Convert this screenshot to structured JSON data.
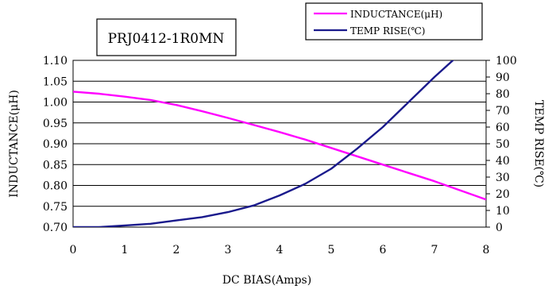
{
  "chart_data": {
    "type": "line",
    "title": "PRJ0412-1R0MN",
    "xlabel": "DC BIAS(Amps)",
    "ylabel_left": "INDUCTANCE(μH)",
    "ylabel_right": "TEMP RISE(℃)",
    "xlim": [
      0,
      8
    ],
    "ylim_left": [
      0.7,
      1.1
    ],
    "ylim_right": [
      0,
      100
    ],
    "x_ticks": [
      "0",
      "1",
      "2",
      "3",
      "4",
      "5",
      "6",
      "7",
      "8"
    ],
    "y_left_ticks": [
      "0.70",
      "0.75",
      "0.80",
      "0.85",
      "0.90",
      "0.95",
      "1.00",
      "1.05",
      "1.10"
    ],
    "y_right_ticks": [
      "0",
      "10",
      "20",
      "30",
      "40",
      "50",
      "60",
      "70",
      "80",
      "90",
      "100"
    ],
    "grid": true,
    "legend_position": "top-right",
    "series": [
      {
        "name": "INDUCTANCE(μH)",
        "axis": "left",
        "color": "#ff00ff",
        "x": [
          0,
          0.5,
          1,
          1.5,
          2,
          2.5,
          3,
          3.5,
          4,
          4.5,
          5,
          5.5,
          6,
          6.5,
          7,
          7.5,
          8
        ],
        "y": [
          1.025,
          1.02,
          1.013,
          1.005,
          0.993,
          0.978,
          0.962,
          0.945,
          0.928,
          0.91,
          0.89,
          0.87,
          0.85,
          0.83,
          0.81,
          0.788,
          0.766
        ]
      },
      {
        "name": "TEMP RISE(℃)",
        "axis": "right",
        "color": "#1a1a8c",
        "x": [
          0,
          0.5,
          1,
          1.5,
          2,
          2.5,
          3,
          3.5,
          4,
          4.5,
          5,
          5.5,
          6,
          6.5,
          7,
          7.5
        ],
        "y": [
          0,
          0,
          1,
          2,
          4,
          6,
          9,
          13,
          19,
          26,
          35,
          47,
          60,
          75,
          90,
          104
        ]
      }
    ]
  }
}
